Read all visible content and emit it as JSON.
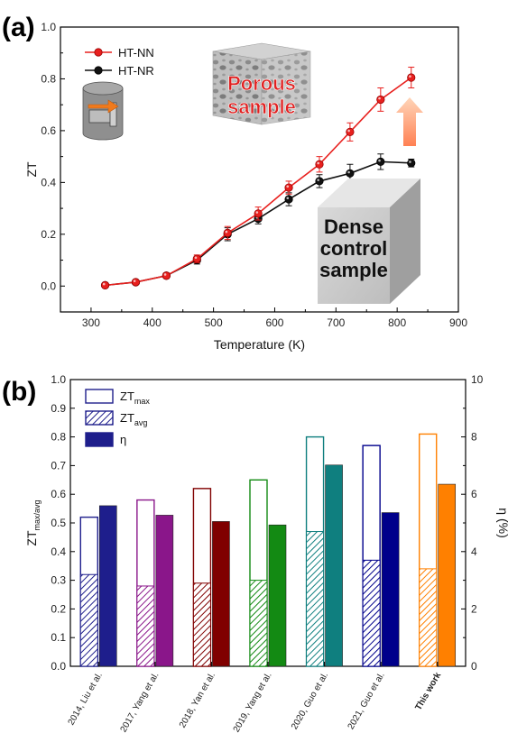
{
  "panel_a": {
    "label": "(a)",
    "porous_label_lines": [
      "Porous",
      "sample"
    ],
    "dense_label_lines": [
      "Dense",
      "control",
      "sample"
    ]
  },
  "panel_b": {
    "label": "(b)"
  },
  "colors": {
    "ht_nn": "#e8201e",
    "ht_nr": "#111111",
    "porous_text": "#e02020",
    "this_work_label": "#ee1111"
  },
  "chart_data": [
    {
      "type": "line",
      "xlabel": "Temperature (K)",
      "ylabel": "ZT",
      "xlim": [
        250,
        900
      ],
      "ylim": [
        -0.1,
        1.0
      ],
      "xticks": [
        300,
        400,
        500,
        600,
        700,
        800,
        900
      ],
      "yticks": [
        0.0,
        0.2,
        0.4,
        0.6,
        0.8,
        1.0
      ],
      "legend_position": "top-left",
      "series": [
        {
          "name": "HT-NN",
          "color": "#e8201e",
          "x": [
            323,
            373,
            423,
            473,
            523,
            573,
            623,
            673,
            723,
            773,
            823
          ],
          "y": [
            0.003,
            0.015,
            0.04,
            0.105,
            0.205,
            0.28,
            0.38,
            0.47,
            0.595,
            0.72,
            0.805
          ],
          "err": [
            0.005,
            0.008,
            0.01,
            0.015,
            0.025,
            0.025,
            0.025,
            0.03,
            0.035,
            0.045,
            0.04
          ]
        },
        {
          "name": "HT-NR",
          "color": "#111111",
          "x": [
            323,
            373,
            423,
            473,
            523,
            573,
            623,
            673,
            723,
            773,
            823
          ],
          "y": [
            0.003,
            0.015,
            0.04,
            0.1,
            0.2,
            0.26,
            0.335,
            0.405,
            0.435,
            0.48,
            0.475
          ],
          "err": [
            0.005,
            0.008,
            0.01,
            0.015,
            0.025,
            0.02,
            0.025,
            0.025,
            0.035,
            0.03,
            0.015
          ]
        }
      ]
    },
    {
      "type": "bar",
      "ylabel_left": "ZT",
      "ylabel_left_sub": "max/avg",
      "ylabel_right": "η (%)",
      "ylim_left": [
        0,
        1.0
      ],
      "ylim_right": [
        0,
        10
      ],
      "yticks_left": [
        0.0,
        0.1,
        0.2,
        0.3,
        0.4,
        0.5,
        0.6,
        0.7,
        0.8,
        0.9,
        1.0
      ],
      "yticks_right": [
        0,
        2,
        4,
        6,
        8,
        10
      ],
      "legend_position": "top-left",
      "legend": [
        {
          "key": "zt_max",
          "main": "ZT",
          "sub": "max"
        },
        {
          "key": "zt_avg",
          "main": "ZT",
          "sub": "avg"
        },
        {
          "key": "eta",
          "main": "η",
          "sub": ""
        }
      ],
      "categories": [
        "2014, Liu et al.",
        "2017, Yang et al.",
        "2018, Yan et al.",
        "2019, Yang et al.",
        "2020, Guo et al.",
        "2021, Guo et al.",
        "This work"
      ],
      "bar_colors": [
        "#1e1e8c",
        "#8a168a",
        "#800000",
        "#138a13",
        "#0f7f7f",
        "#00008b",
        "#ff8000"
      ],
      "zt_max": [
        0.52,
        0.58,
        0.62,
        0.65,
        0.8,
        0.77,
        0.81
      ],
      "zt_avg": [
        0.32,
        0.28,
        0.29,
        0.3,
        0.47,
        0.37,
        0.34
      ],
      "eta": [
        5.6,
        5.27,
        5.05,
        4.93,
        7.02,
        5.36,
        6.35
      ]
    }
  ]
}
